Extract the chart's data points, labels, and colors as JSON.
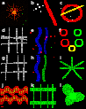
{
  "figure_bg": "#000000",
  "grid_rows": 4,
  "grid_cols": 3,
  "labels": [
    "a",
    "b",
    "c",
    "d",
    "e",
    "f",
    "g",
    "h",
    "i",
    "j",
    "k",
    "l"
  ],
  "label_color": "#ffffff",
  "label_fontsize": 4.0,
  "hgap": 0.01,
  "vgap": 0.01,
  "panels": [
    {
      "id": 0,
      "row": 0,
      "col": 0,
      "type": "star_rg"
    },
    {
      "id": 1,
      "row": 0,
      "col": 1,
      "type": "dark_spots"
    },
    {
      "id": 2,
      "row": 0,
      "col": 2,
      "type": "red_arc_green"
    },
    {
      "id": 3,
      "row": 1,
      "col": 0,
      "type": "gray_branch"
    },
    {
      "id": 4,
      "row": 1,
      "col": 1,
      "type": "blue_vessels"
    },
    {
      "id": 5,
      "row": 1,
      "col": 2,
      "type": "dark_circles"
    },
    {
      "id": 6,
      "row": 2,
      "col": 0,
      "type": "gray_branch2"
    },
    {
      "id": 7,
      "row": 2,
      "col": 1,
      "type": "blue_green_vessels"
    },
    {
      "id": 8,
      "row": 2,
      "col": 2,
      "type": "green_tree"
    },
    {
      "id": 9,
      "row": 3,
      "col": 0,
      "type": "rg_horiz"
    },
    {
      "id": 10,
      "row": 3,
      "col": 1,
      "type": "green_horiz"
    },
    {
      "id": 11,
      "row": 3,
      "col": 2,
      "type": "green_blob"
    }
  ]
}
